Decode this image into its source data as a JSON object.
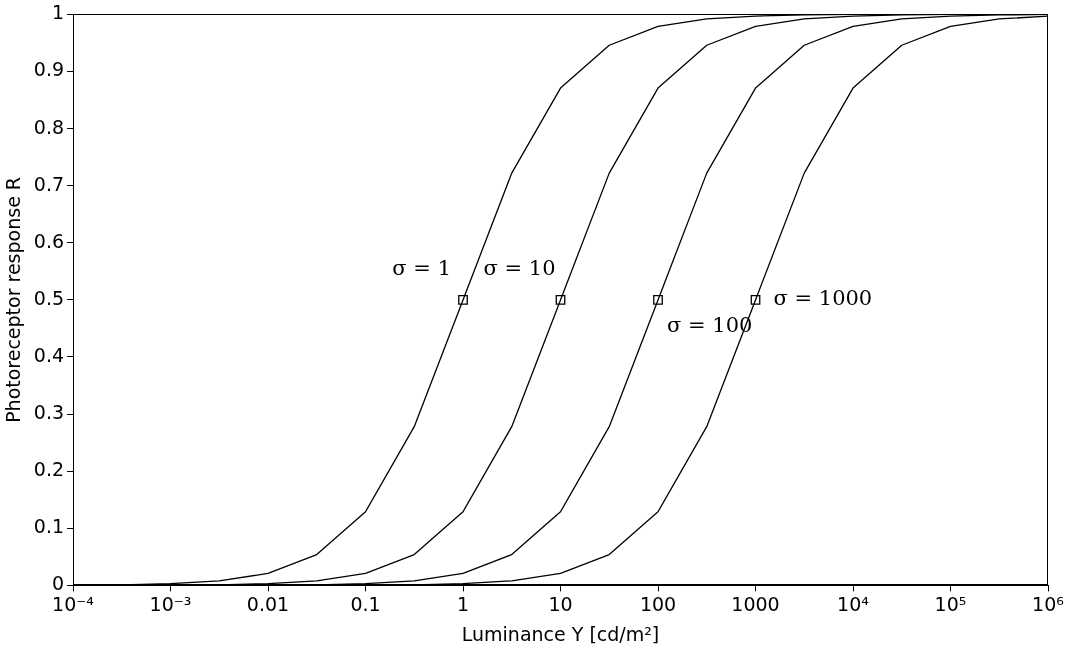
{
  "chart_data": {
    "type": "line",
    "xlabel": "Luminance Y [cd/m²]",
    "ylabel": "Photoreceptor response R",
    "log": "x",
    "grid": false,
    "legend": false,
    "marker": "none",
    "line_style": "solid",
    "xlim": [
      0.0001,
      1000000
    ],
    "ylim": [
      0,
      1
    ],
    "xticks": [
      {
        "value": 0.0001,
        "label": "10⁻⁴"
      },
      {
        "value": 0.001,
        "label": "10⁻³"
      },
      0.01,
      0.1,
      1,
      10,
      100,
      1000,
      {
        "value": 10000,
        "label": "10⁴"
      },
      {
        "value": 100000,
        "label": "10⁵"
      },
      {
        "value": 1000000,
        "label": "10⁶"
      }
    ],
    "yticks": [
      0,
      0.1,
      0.2,
      0.3,
      0.4,
      0.5,
      0.6,
      0.7,
      0.8,
      0.9,
      1
    ],
    "series": [
      {
        "color": "#000000",
        "x": [
          0.0001,
          0.000316,
          0.001,
          0.00316,
          0.01,
          0.0316,
          0.1,
          0.316,
          1,
          3.16,
          10,
          31.6,
          100,
          316,
          1000,
          3160,
          10000
        ],
        "values": [
          0,
          0.001,
          0.003,
          0.008,
          0.021,
          0.054,
          0.129,
          0.278,
          0.5,
          0.722,
          0.871,
          0.946,
          0.979,
          0.992,
          0.997,
          0.999,
          1
        ]
      },
      {
        "color": "#000000",
        "x": [
          0.001,
          0.00316,
          0.01,
          0.0316,
          0.1,
          0.316,
          1,
          3.16,
          10,
          31.6,
          100,
          316,
          1000,
          3160,
          10000,
          31600,
          100000,
          1000000
        ],
        "values": [
          0,
          0.001,
          0.003,
          0.008,
          0.021,
          0.054,
          0.129,
          0.278,
          0.5,
          0.722,
          0.871,
          0.946,
          0.979,
          0.992,
          0.997,
          0.999,
          1,
          1
        ]
      },
      {
        "color": "#000000",
        "x": [
          0.01,
          0.0316,
          0.1,
          0.316,
          1,
          3.16,
          10,
          31.6,
          100,
          316,
          1000,
          3160,
          10000,
          31600,
          100000,
          316000,
          1000000
        ],
        "values": [
          0,
          0.001,
          0.003,
          0.008,
          0.021,
          0.054,
          0.129,
          0.278,
          0.5,
          0.722,
          0.871,
          0.946,
          0.979,
          0.992,
          0.997,
          0.999,
          1
        ]
      },
      {
        "color": "#000000",
        "x": [
          0.1,
          0.316,
          1,
          3.16,
          10,
          31.6,
          100,
          316,
          1000,
          3160,
          10000,
          31600,
          100000,
          316000,
          1000000
        ],
        "values": [
          0,
          0.001,
          0.003,
          0.008,
          0.021,
          0.054,
          0.129,
          0.278,
          0.5,
          0.722,
          0.871,
          0.946,
          0.979,
          0.992,
          0.997
        ]
      },
      {
        "type": "scatter",
        "marker": "square",
        "color": "#000000",
        "x": [
          1,
          10,
          100,
          1000
        ],
        "values": [
          0.5,
          0.5,
          0.5,
          0.5
        ]
      }
    ],
    "annotations": [
      {
        "text": "σ = 1",
        "x": 1,
        "y": 0.5
      },
      {
        "text": "σ = 10",
        "x": 10,
        "y": 0.5
      },
      {
        "text": "σ = 100",
        "x": 100,
        "y": 0.5
      },
      {
        "text": "σ = 1000",
        "x": 1000,
        "y": 0.5
      }
    ]
  }
}
